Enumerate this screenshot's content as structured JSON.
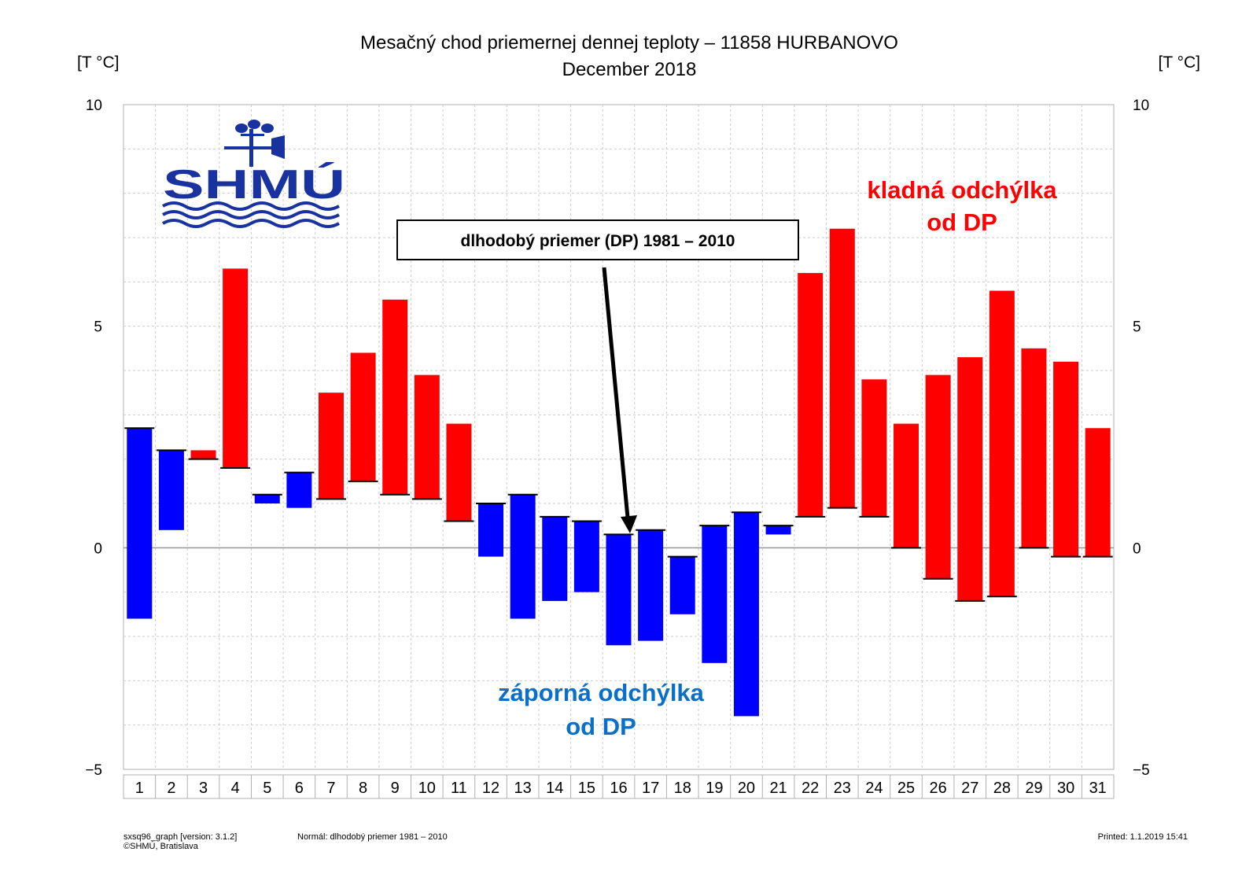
{
  "colors": {
    "positive": "#ff0000",
    "negative": "#0000ff",
    "neg_text": "#0a6fc8",
    "logo": "#1832a0"
  },
  "chart_data": {
    "type": "bar",
    "title": "Mesačný chod priemernej dennej teploty – 11858 HURBANOVO",
    "subtitle": "December 2018",
    "ylabel_left": "[T °C]",
    "ylabel_right": "[T °C]",
    "ylim": [
      -5,
      10
    ],
    "yticks": [
      -5,
      0,
      5,
      10
    ],
    "grid": true,
    "categories": [
      "1",
      "2",
      "3",
      "4",
      "5",
      "6",
      "7",
      "8",
      "9",
      "10",
      "11",
      "12",
      "13",
      "14",
      "15",
      "16",
      "17",
      "18",
      "19",
      "20",
      "21",
      "22",
      "23",
      "24",
      "25",
      "26",
      "27",
      "28",
      "29",
      "30",
      "31"
    ],
    "series": [
      {
        "values": [
          -1.6,
          0.4,
          2.2,
          6.3,
          1.0,
          0.9,
          3.5,
          4.4,
          5.6,
          3.9,
          2.8,
          -0.2,
          -1.6,
          -1.2,
          -1.0,
          -2.2,
          -2.1,
          -1.5,
          -2.6,
          -3.8,
          0.3,
          6.2,
          7.2,
          3.8,
          2.8,
          3.9,
          4.3,
          5.8,
          4.5,
          4.2,
          2.7
        ]
      },
      {
        "values": [
          2.7,
          2.2,
          2.0,
          1.8,
          1.2,
          1.7,
          1.1,
          1.5,
          1.2,
          1.1,
          0.6,
          1.0,
          1.2,
          0.7,
          0.6,
          0.3,
          0.4,
          -0.2,
          0.5,
          0.8,
          0.5,
          0.7,
          0.9,
          0.7,
          0.0,
          -0.7,
          -1.2,
          -1.1,
          0.0,
          -0.2,
          -0.2
        ]
      }
    ]
  },
  "annotations": {
    "callout": "dlhodobý priemer (DP) 1981 – 2010",
    "positive_line1": "kladná odchýlka",
    "positive_line2": "od DP",
    "negative_line1": "záporná odchýlka",
    "negative_line2": "od DP"
  },
  "logo": {
    "text": "SHMÚ"
  },
  "footer": {
    "left_line1": "sxsq96_graph [version: 3.1.2]",
    "left_line2": "©SHMÚ, Bratislava",
    "normal": "Normál: dlhodobý priemer 1981 – 2010",
    "printed": "Printed: 1.1.2019  15:41"
  }
}
